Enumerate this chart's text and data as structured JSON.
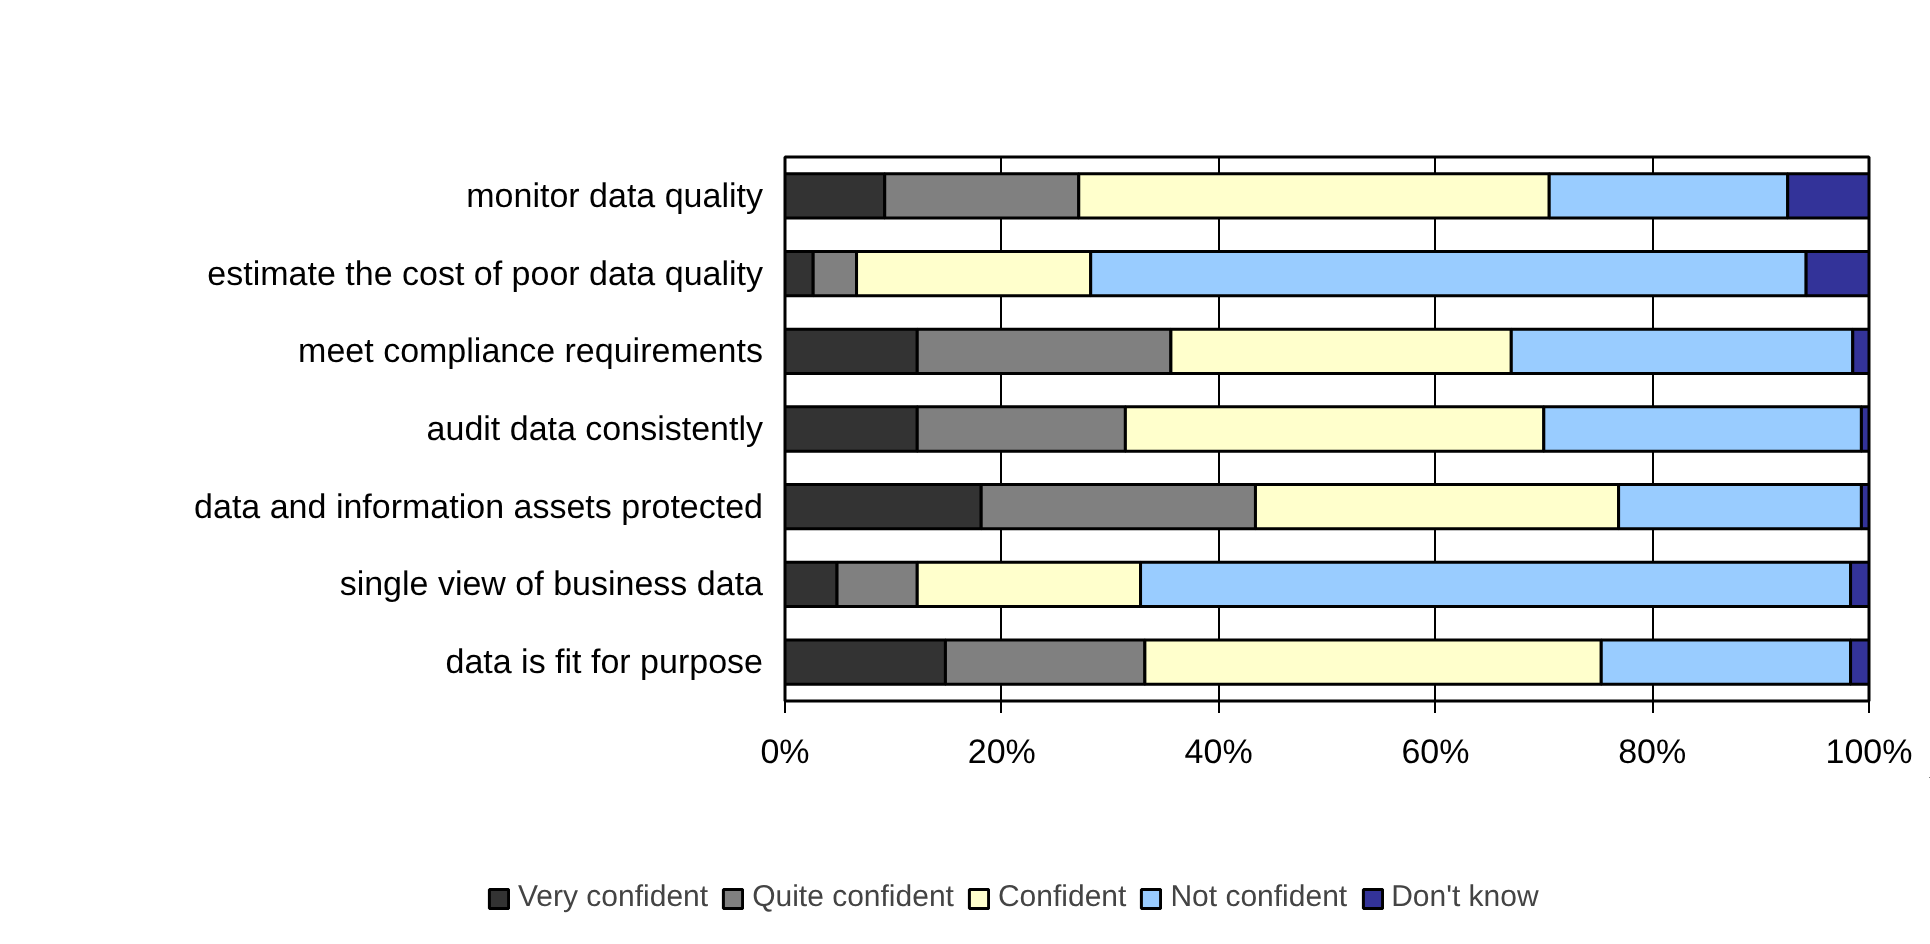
{
  "chart_data": {
    "type": "bar",
    "orientation": "horizontal",
    "stacked": true,
    "categories": [
      "monitor data quality",
      "estimate the cost of poor data quality",
      "meet compliance requirements",
      "audit data consistently",
      "data and information assets protected",
      "single view of business data",
      "data is fit for purpose"
    ],
    "series": [
      {
        "name": "Very confident",
        "color": "#333333",
        "values": [
          9.2,
          2.6,
          12.2,
          12.2,
          18.1,
          4.8,
          14.8
        ]
      },
      {
        "name": "Quite confident",
        "color": "#808080",
        "values": [
          17.9,
          4.0,
          23.4,
          19.2,
          25.3,
          7.4,
          18.4
        ]
      },
      {
        "name": "Confident",
        "color": "#ffffcc",
        "values": [
          43.4,
          21.6,
          31.4,
          38.6,
          33.5,
          20.6,
          42.1
        ]
      },
      {
        "name": "Not confident",
        "color": "#99ccff",
        "values": [
          22.0,
          66.0,
          31.5,
          29.3,
          22.4,
          65.5,
          23.0
        ]
      },
      {
        "name": "Don't know",
        "color": "#333399",
        "values": [
          7.5,
          5.8,
          1.5,
          0.7,
          0.7,
          1.7,
          1.7
        ]
      }
    ],
    "xlim": [
      0,
      100
    ],
    "xticks": [
      {
        "value": 0,
        "label": "0%"
      },
      {
        "value": 20,
        "label": "20%"
      },
      {
        "value": 40,
        "label": "40%"
      },
      {
        "value": 60,
        "label": "60%"
      },
      {
        "value": 80,
        "label": "80%"
      },
      {
        "value": 100,
        "label": "100%"
      }
    ],
    "grid": "x",
    "legend": "bottom"
  }
}
